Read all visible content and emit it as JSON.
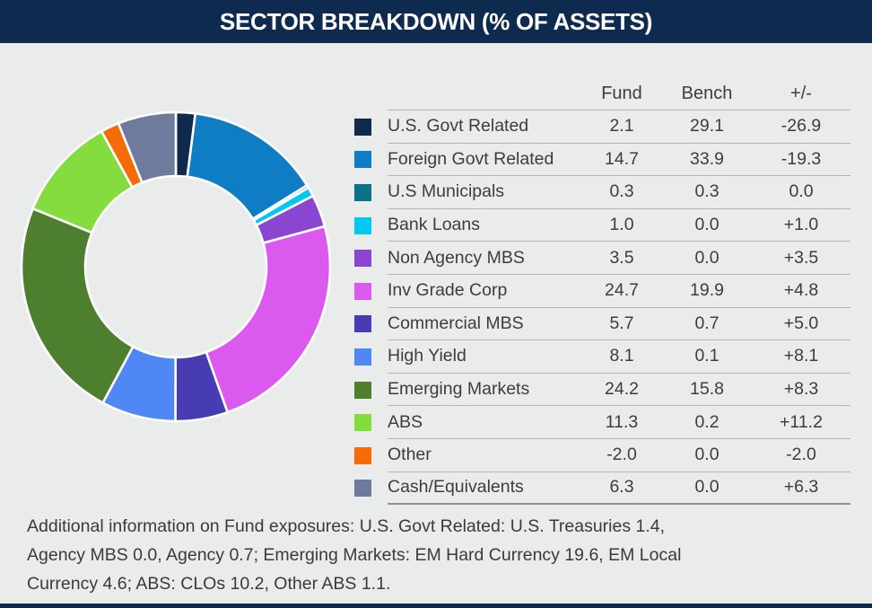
{
  "header": {
    "title": "SECTOR BREAKDOWN (% OF ASSETS)"
  },
  "table": {
    "col_fund": "Fund",
    "col_bench": "Bench",
    "col_diff": "+/-",
    "rows": [
      {
        "label": "U.S. Govt Related",
        "color": "#0e2a4d",
        "fund": "2.1",
        "bench": "29.1",
        "diff": "-26.9"
      },
      {
        "label": "Foreign Govt Related",
        "color": "#0f7dc3",
        "fund": "14.7",
        "bench": "33.9",
        "diff": "-19.3"
      },
      {
        "label": "U.S Municipals",
        "color": "#0c7286",
        "fund": "0.3",
        "bench": "0.3",
        "diff": "0.0"
      },
      {
        "label": "Bank Loans",
        "color": "#00c8f0",
        "fund": "1.0",
        "bench": "0.0",
        "diff": "+1.0"
      },
      {
        "label": "Non Agency MBS",
        "color": "#8a46d1",
        "fund": "3.5",
        "bench": "0.0",
        "diff": "+3.5"
      },
      {
        "label": "Inv Grade Corp",
        "color": "#dc59f0",
        "fund": "24.7",
        "bench": "19.9",
        "diff": "+4.8"
      },
      {
        "label": "Commercial MBS",
        "color": "#473cb2",
        "fund": "5.7",
        "bench": "0.7",
        "diff": "+5.0"
      },
      {
        "label": "High Yield",
        "color": "#4f87f5",
        "fund": "8.1",
        "bench": "0.1",
        "diff": "+8.1"
      },
      {
        "label": "Emerging Markets",
        "color": "#4e7f2f",
        "fund": "24.2",
        "bench": "15.8",
        "diff": "+8.3"
      },
      {
        "label": "ABS",
        "color": "#85dc3e",
        "fund": "11.3",
        "bench": "0.2",
        "diff": "+11.2"
      },
      {
        "label": "Other",
        "color": "#f76b07",
        "fund": "-2.0",
        "bench": "0.0",
        "diff": "-2.0"
      },
      {
        "label": "Cash/Equivalents",
        "color": "#6f7b9c",
        "fund": "6.3",
        "bench": "0.0",
        "diff": "+6.3"
      }
    ]
  },
  "chart_data": {
    "type": "pie",
    "subtype": "donut",
    "title": "SECTOR BREAKDOWN (% OF ASSETS)",
    "categories": [
      "U.S. Govt Related",
      "Foreign Govt Related",
      "U.S Municipals",
      "Bank Loans",
      "Non Agency MBS",
      "Inv Grade Corp",
      "Commercial MBS",
      "High Yield",
      "Emerging Markets",
      "ABS",
      "Other",
      "Cash/Equivalents"
    ],
    "series": [
      {
        "name": "Fund",
        "values": [
          2.1,
          14.7,
          0.3,
          1.0,
          3.5,
          24.7,
          5.7,
          8.1,
          24.2,
          11.3,
          -2.0,
          6.3
        ]
      },
      {
        "name": "Bench",
        "values": [
          29.1,
          33.9,
          0.3,
          0.0,
          0.0,
          19.9,
          0.7,
          0.1,
          15.8,
          0.2,
          0.0,
          0.0
        ]
      },
      {
        "name": "+/-",
        "values": [
          -26.9,
          -19.3,
          0.0,
          1.0,
          3.5,
          4.8,
          5.0,
          8.1,
          8.3,
          11.2,
          -2.0,
          6.3
        ]
      }
    ],
    "colors": [
      "#0e2a4d",
      "#0f7dc3",
      "#0c7286",
      "#00c8f0",
      "#8a46d1",
      "#dc59f0",
      "#473cb2",
      "#4f87f5",
      "#4e7f2f",
      "#85dc3e",
      "#f76b07",
      "#6f7b9c"
    ],
    "donut_series": "Fund",
    "slice_render": "absolute-values",
    "start_angle_deg": 0,
    "direction": "clockwise",
    "donut_hole_ratio": 0.59,
    "legend_position": "right-table"
  },
  "footer": {
    "lines": [
      "Additional information on Fund exposures: U.S. Govt Related: U.S. Treasuries 1.4,",
      "Agency MBS 0.0, Agency 0.7; Emerging Markets: EM Hard Currency 19.6, EM Local",
      "Currency 4.6; ABS: CLOs 10.2, Other ABS 1.1."
    ]
  },
  "colors": {
    "header_bg": "#0e2a4e",
    "page_bg": "#eaebeb",
    "row_line": "#b4b6b6",
    "bottom_rule": "#8f9191",
    "text": "#3d3d3d",
    "slice_gap": "#ffffff"
  }
}
